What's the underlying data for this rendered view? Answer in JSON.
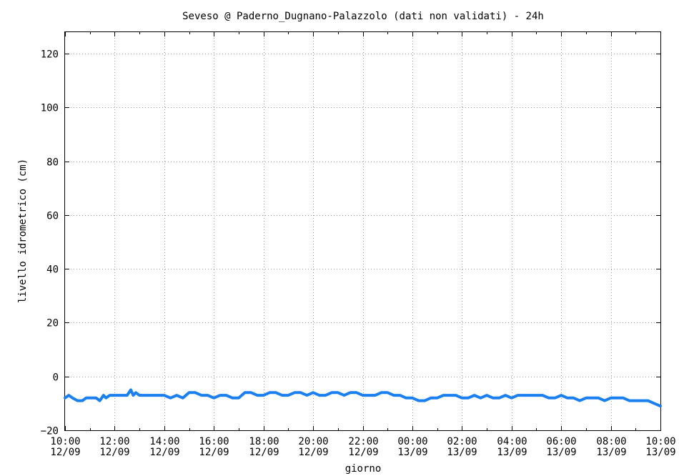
{
  "chart_data": {
    "type": "line",
    "title": "Seveso @ Paderno_Dugnano-Palazzolo (dati non validati) - 24h",
    "xlabel": "giorno",
    "ylabel": "livello idrometrico (cm)",
    "ylim": [
      -20,
      128
    ],
    "yticks": [
      -20,
      0,
      20,
      40,
      60,
      80,
      100,
      120
    ],
    "xlim_hours": [
      0,
      24
    ],
    "xticks": [
      {
        "hour": 0,
        "time": "10:00",
        "date": "12/09"
      },
      {
        "hour": 2,
        "time": "12:00",
        "date": "12/09"
      },
      {
        "hour": 4,
        "time": "14:00",
        "date": "12/09"
      },
      {
        "hour": 6,
        "time": "16:00",
        "date": "12/09"
      },
      {
        "hour": 8,
        "time": "18:00",
        "date": "12/09"
      },
      {
        "hour": 10,
        "time": "20:00",
        "date": "12/09"
      },
      {
        "hour": 12,
        "time": "22:00",
        "date": "12/09"
      },
      {
        "hour": 14,
        "time": "00:00",
        "date": "13/09"
      },
      {
        "hour": 16,
        "time": "02:00",
        "date": "13/09"
      },
      {
        "hour": 18,
        "time": "04:00",
        "date": "13/09"
      },
      {
        "hour": 20,
        "time": "06:00",
        "date": "13/09"
      },
      {
        "hour": 22,
        "time": "08:00",
        "date": "13/09"
      },
      {
        "hour": 24,
        "time": "10:00",
        "date": "13/09"
      }
    ],
    "grid": true,
    "series": [
      {
        "color": "#1a7ff0",
        "x": [
          0,
          0.15,
          0.3,
          0.5,
          0.7,
          0.85,
          1.0,
          1.25,
          1.4,
          1.55,
          1.65,
          1.8,
          2.0,
          2.25,
          2.5,
          2.65,
          2.75,
          2.85,
          3.0,
          3.25,
          3.5,
          3.75,
          4.0,
          4.25,
          4.5,
          4.75,
          5.0,
          5.25,
          5.5,
          5.75,
          6.0,
          6.25,
          6.5,
          6.75,
          7.0,
          7.25,
          7.5,
          7.75,
          8.0,
          8.25,
          8.5,
          8.75,
          9.0,
          9.25,
          9.5,
          9.75,
          10.0,
          10.25,
          10.5,
          10.75,
          11.0,
          11.25,
          11.5,
          11.75,
          12.0,
          12.25,
          12.5,
          12.75,
          13.0,
          13.25,
          13.5,
          13.75,
          14.0,
          14.25,
          14.5,
          14.75,
          15.0,
          15.25,
          15.5,
          15.75,
          16.0,
          16.25,
          16.5,
          16.75,
          17.0,
          17.25,
          17.5,
          17.75,
          18.0,
          18.25,
          18.5,
          18.75,
          19.0,
          19.25,
          19.5,
          19.75,
          20.0,
          20.25,
          20.5,
          20.75,
          21.0,
          21.25,
          21.5,
          21.75,
          22.0,
          22.25,
          22.5,
          22.75,
          23.0,
          23.25,
          23.5,
          23.75,
          24.0
        ],
        "y": [
          -8,
          -7,
          -8,
          -9,
          -9,
          -8,
          -8,
          -8,
          -9,
          -7,
          -8,
          -7,
          -7,
          -7,
          -7,
          -5,
          -7,
          -6,
          -7,
          -7,
          -7,
          -7,
          -7,
          -8,
          -7,
          -8,
          -6,
          -6,
          -7,
          -7,
          -8,
          -7,
          -7,
          -8,
          -8,
          -6,
          -6,
          -7,
          -7,
          -6,
          -6,
          -7,
          -7,
          -6,
          -6,
          -7,
          -6,
          -7,
          -7,
          -6,
          -6,
          -7,
          -6,
          -6,
          -7,
          -7,
          -7,
          -6,
          -6,
          -7,
          -7,
          -8,
          -8,
          -9,
          -9,
          -8,
          -8,
          -7,
          -7,
          -7,
          -8,
          -8,
          -7,
          -8,
          -7,
          -8,
          -8,
          -7,
          -8,
          -7,
          -7,
          -7,
          -7,
          -7,
          -8,
          -8,
          -7,
          -8,
          -8,
          -9,
          -8,
          -8,
          -8,
          -9,
          -8,
          -8,
          -8,
          -9,
          -9,
          -9,
          -9,
          -10,
          -11
        ]
      }
    ]
  }
}
